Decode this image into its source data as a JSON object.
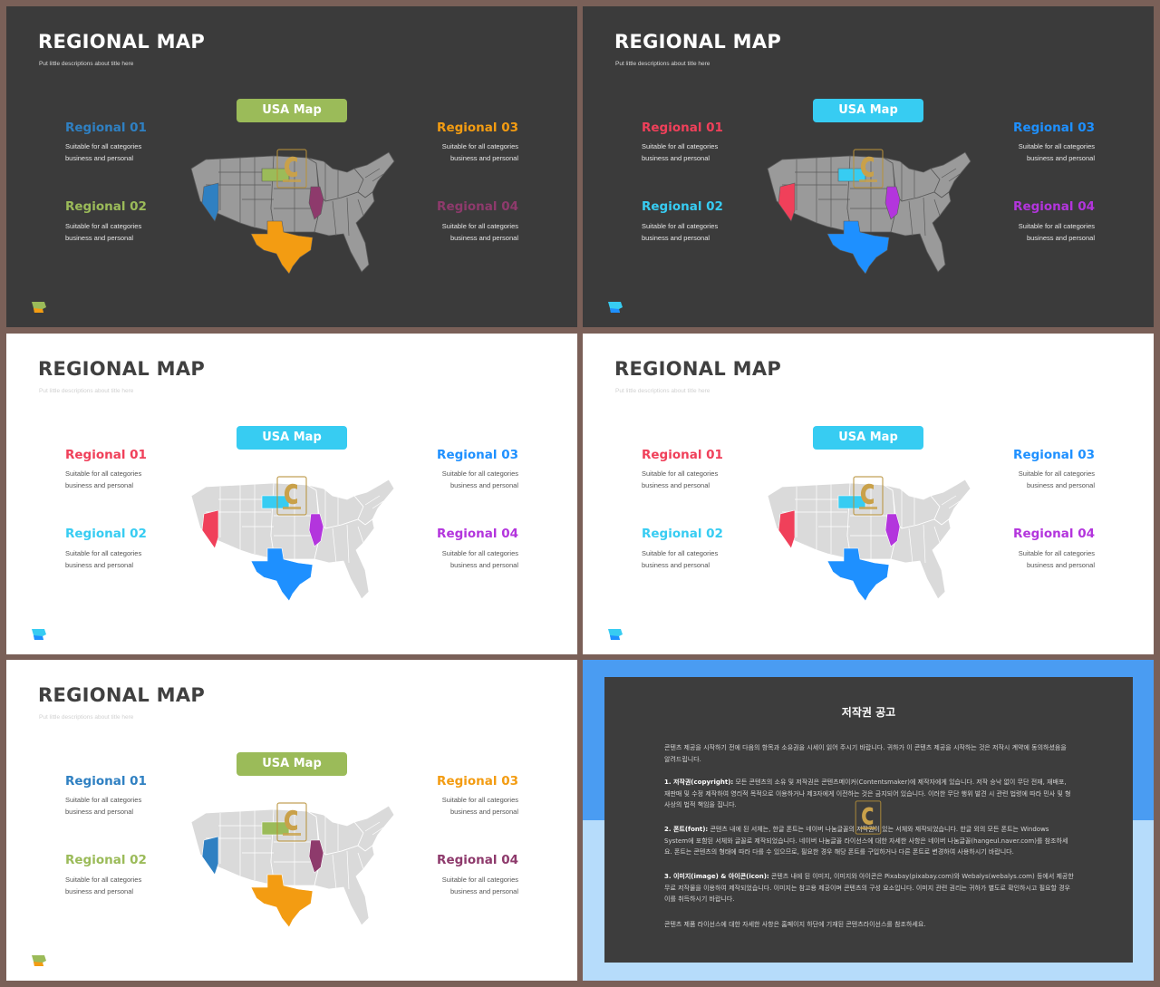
{
  "slides": [
    {
      "theme": "dark",
      "title": "REGIONAL MAP",
      "subtitle": "Put little descriptions about title here",
      "pill_label": "USA Map",
      "pill_color": "#9bbb59",
      "regions": [
        {
          "label": "Regional 01",
          "desc1": "Suitable for all categories",
          "desc2": "business and personal",
          "color": "#2f80c2"
        },
        {
          "label": "Regional 02",
          "desc1": "Suitable for all categories",
          "desc2": "business and personal",
          "color": "#9bbb59"
        },
        {
          "label": "Regional 03",
          "desc1": "Suitable for all categories",
          "desc2": "business and personal",
          "color": "#f39c12"
        },
        {
          "label": "Regional 04",
          "desc1": "Suitable for all categories",
          "desc2": "business and personal",
          "color": "#8e3a6c"
        }
      ],
      "map_base": "#9a9a9a",
      "highlights": {
        "nevada": "#2f80c2",
        "north_dakota": "#9bbb59",
        "illinois": "#8e3a6c",
        "texas": "#f39c12"
      }
    },
    {
      "theme": "dark",
      "title": "REGIONAL MAP",
      "subtitle": "Put little descriptions about title here",
      "pill_label": "USA Map",
      "pill_color": "#37ccf2",
      "regions": [
        {
          "label": "Regional 01",
          "desc1": "Suitable for all categories",
          "desc2": "business and personal",
          "color": "#f0405a"
        },
        {
          "label": "Regional 02",
          "desc1": "Suitable for all categories",
          "desc2": "business and personal",
          "color": "#37ccf2"
        },
        {
          "label": "Regional 03",
          "desc1": "Suitable for all categories",
          "desc2": "business and personal",
          "color": "#1e90ff"
        },
        {
          "label": "Regional 04",
          "desc1": "Suitable for all categories",
          "desc2": "business and personal",
          "color": "#b335dd"
        }
      ],
      "map_base": "#9a9a9a",
      "highlights": {
        "nevada": "#f0405a",
        "north_dakota": "#37ccf2",
        "illinois": "#b335dd",
        "texas": "#1e90ff"
      }
    },
    {
      "theme": "light",
      "title": "REGIONAL MAP",
      "subtitle": "Put little descriptions about title here",
      "pill_label": "USA Map",
      "pill_color": "#37ccf2",
      "regions": [
        {
          "label": "Regional 01",
          "desc1": "Suitable for all categories",
          "desc2": "business and personal",
          "color": "#f0405a"
        },
        {
          "label": "Regional 02",
          "desc1": "Suitable for all categories",
          "desc2": "business and personal",
          "color": "#37ccf2"
        },
        {
          "label": "Regional 03",
          "desc1": "Suitable for all categories",
          "desc2": "business and personal",
          "color": "#1e90ff"
        },
        {
          "label": "Regional 04",
          "desc1": "Suitable for all categories",
          "desc2": "business and personal",
          "color": "#b335dd"
        }
      ],
      "map_base": "#dadada",
      "highlights": {
        "nevada": "#f0405a",
        "north_dakota": "#37ccf2",
        "illinois": "#b335dd",
        "texas": "#1e90ff"
      }
    },
    {
      "theme": "light",
      "title": "REGIONAL MAP",
      "subtitle": "Put little descriptions about title here",
      "pill_label": "USA Map",
      "pill_color": "#37ccf2",
      "regions": [
        {
          "label": "Regional 01",
          "desc1": "Suitable for all categories",
          "desc2": "business and personal",
          "color": "#f0405a"
        },
        {
          "label": "Regional 02",
          "desc1": "Suitable for all categories",
          "desc2": "business and personal",
          "color": "#37ccf2"
        },
        {
          "label": "Regional 03",
          "desc1": "Suitable for all categories",
          "desc2": "business and personal",
          "color": "#1e90ff"
        },
        {
          "label": "Regional 04",
          "desc1": "Suitable for all categories",
          "desc2": "business and personal",
          "color": "#b335dd"
        }
      ],
      "map_base": "#dadada",
      "highlights": {
        "nevada": "#f0405a",
        "north_dakota": "#37ccf2",
        "illinois": "#b335dd",
        "texas": "#1e90ff"
      }
    },
    {
      "theme": "light",
      "title": "REGIONAL MAP",
      "subtitle": "Put little descriptions about title here",
      "pill_label": "USA Map",
      "pill_color": "#9bbb59",
      "regions": [
        {
          "label": "Regional 01",
          "desc1": "Suitable for all categories",
          "desc2": "business and personal",
          "color": "#2f80c2"
        },
        {
          "label": "Regional 02",
          "desc1": "Suitable for all categories",
          "desc2": "business and personal",
          "color": "#9bbb59"
        },
        {
          "label": "Regional 03",
          "desc1": "Suitable for all categories",
          "desc2": "business and personal",
          "color": "#f39c12"
        },
        {
          "label": "Regional 04",
          "desc1": "Suitable for all categories",
          "desc2": "business and personal",
          "color": "#8e3a6c"
        }
      ],
      "map_base": "#dadada",
      "highlights": {
        "nevada": "#2f80c2",
        "north_dakota": "#9bbb59",
        "illinois": "#8e3a6c",
        "texas": "#f39c12"
      }
    }
  ],
  "notice": {
    "title": "저작권 공고",
    "intro": "콘텐츠 제공을 시작하기 전에 다음의 항목과 소유권을 시세이 읽어 주시기 바랍니다. 귀하가 이 콘텐츠 제공을 시작하는 것은 저작시 계약에 동의하셨음을 알려드립니다.",
    "p1_head": "1. 저작권(copyright):",
    "p1_body": " 모든 콘텐츠의 소유 및 저작권은 콘텐츠메이커(Contentsmaker)에 제작자에게 있습니다. 저작 승낙 없이 무단 전재, 재배포, 재판매 및 수정 제작하여 영리적 목적으로 이용하거나 제3자에게 이전하는 것은 금지되어 있습니다. 이러한 무단 행위 발견 시 관련 법령에 따라 민사 및 형사상의 법적 책임을 집니다.",
    "p2_head": "2. 폰트(font):",
    "p2_body": " 콘텐츠 내에 된 서체는, 한글 폰트는 네이버 나눔글꼴의 저작권이 있는 서체와 제작되었습니다. 한글 외의 모든 폰트는 Windows System에 포함된 서체와 글꼴로 제작되었습니다. 네이버 나눔글꼴 라이선스에 대한 자세한 사항은 네이버 나눔글꼴(hangeul.naver.com)를 참조하세요. 폰트는 콘텐츠의 형태에 따라 다를 수 있으므로, 필요한 경우 해당 폰트를 구입하거나 다른 폰트로 변경하여 사용하시기 바랍니다.",
    "p3_head": "3. 이미지(image) & 아이콘(icon):",
    "p3_body": " 콘텐츠 내에 된 이미지, 이미지와 아이콘은 Pixabay(pixabay.com)와 Webalys(webalys.com) 등에서 제공한 무료 저작물을 이용하여 제작되었습니다. 이미지는 참고용 제공이며 콘텐츠의 구성 요소입니다. 이미지 관련 권리는 귀하가 별도로 확인하시고 필요할 경우 이를 취득하시기 바랍니다.",
    "closing": "콘텐츠 제품 라이선스에 대한 자세한 사항은 홈페이지 하단에 기재된 콘텐츠라이선스를 참조하세요."
  }
}
